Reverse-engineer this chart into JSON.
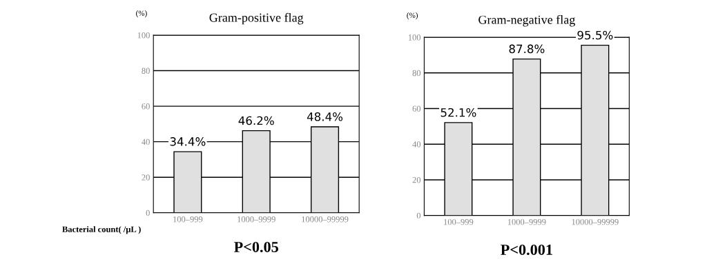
{
  "chart_data": [
    {
      "type": "bar",
      "title": "Gram-positive flag",
      "ylabel": "(%)",
      "xlabel": "Bacterial count( /μL )",
      "categories": [
        "100–999",
        "1000–9999",
        "10000–99999"
      ],
      "values": [
        34.4,
        46.2,
        48.4
      ],
      "value_labels": [
        "34.4%",
        "46.2%",
        "48.4%"
      ],
      "color": "#e0e0e0",
      "ylim": [
        0,
        100
      ],
      "yticks": [
        0,
        20,
        40,
        60,
        80,
        100
      ],
      "grid": "y",
      "annotations": [
        "P<0.05"
      ]
    },
    {
      "type": "bar",
      "title": "Gram-negative flag",
      "ylabel": "(%)",
      "categories": [
        "100–999",
        "1000–9999",
        "10000–99999"
      ],
      "values": [
        52.1,
        87.8,
        95.5
      ],
      "value_labels": [
        "52.1%",
        "87.8%",
        "95.5%"
      ],
      "color": "#e0e0e0",
      "ylim": [
        0,
        100
      ],
      "yticks": [
        0,
        20,
        40,
        60,
        80,
        100
      ],
      "grid": "y",
      "annotations": [
        "P<0.001"
      ]
    }
  ]
}
